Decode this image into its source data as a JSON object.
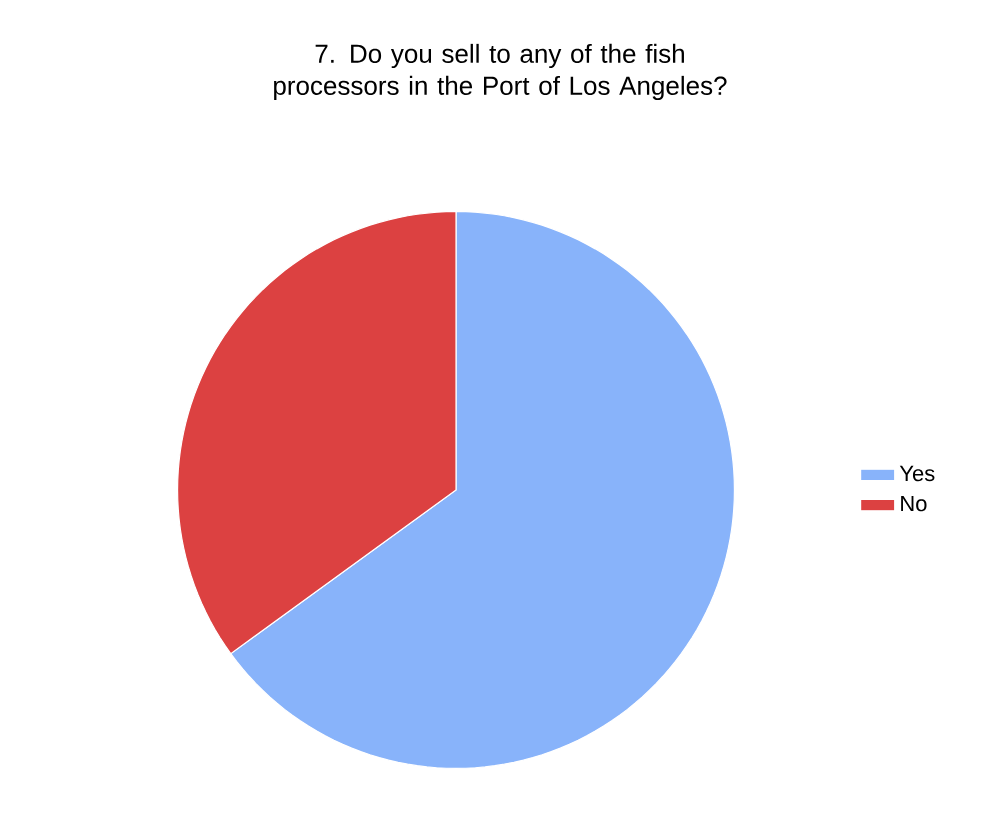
{
  "chart_data": {
    "type": "pie",
    "title": "7. Do you sell to any of the fish processors in the Port of Los Angeles?",
    "categories": [
      "Yes",
      "No"
    ],
    "values": [
      65,
      35
    ],
    "colors": [
      "#88b3fa",
      "#dc4141"
    ],
    "legend": "right"
  }
}
